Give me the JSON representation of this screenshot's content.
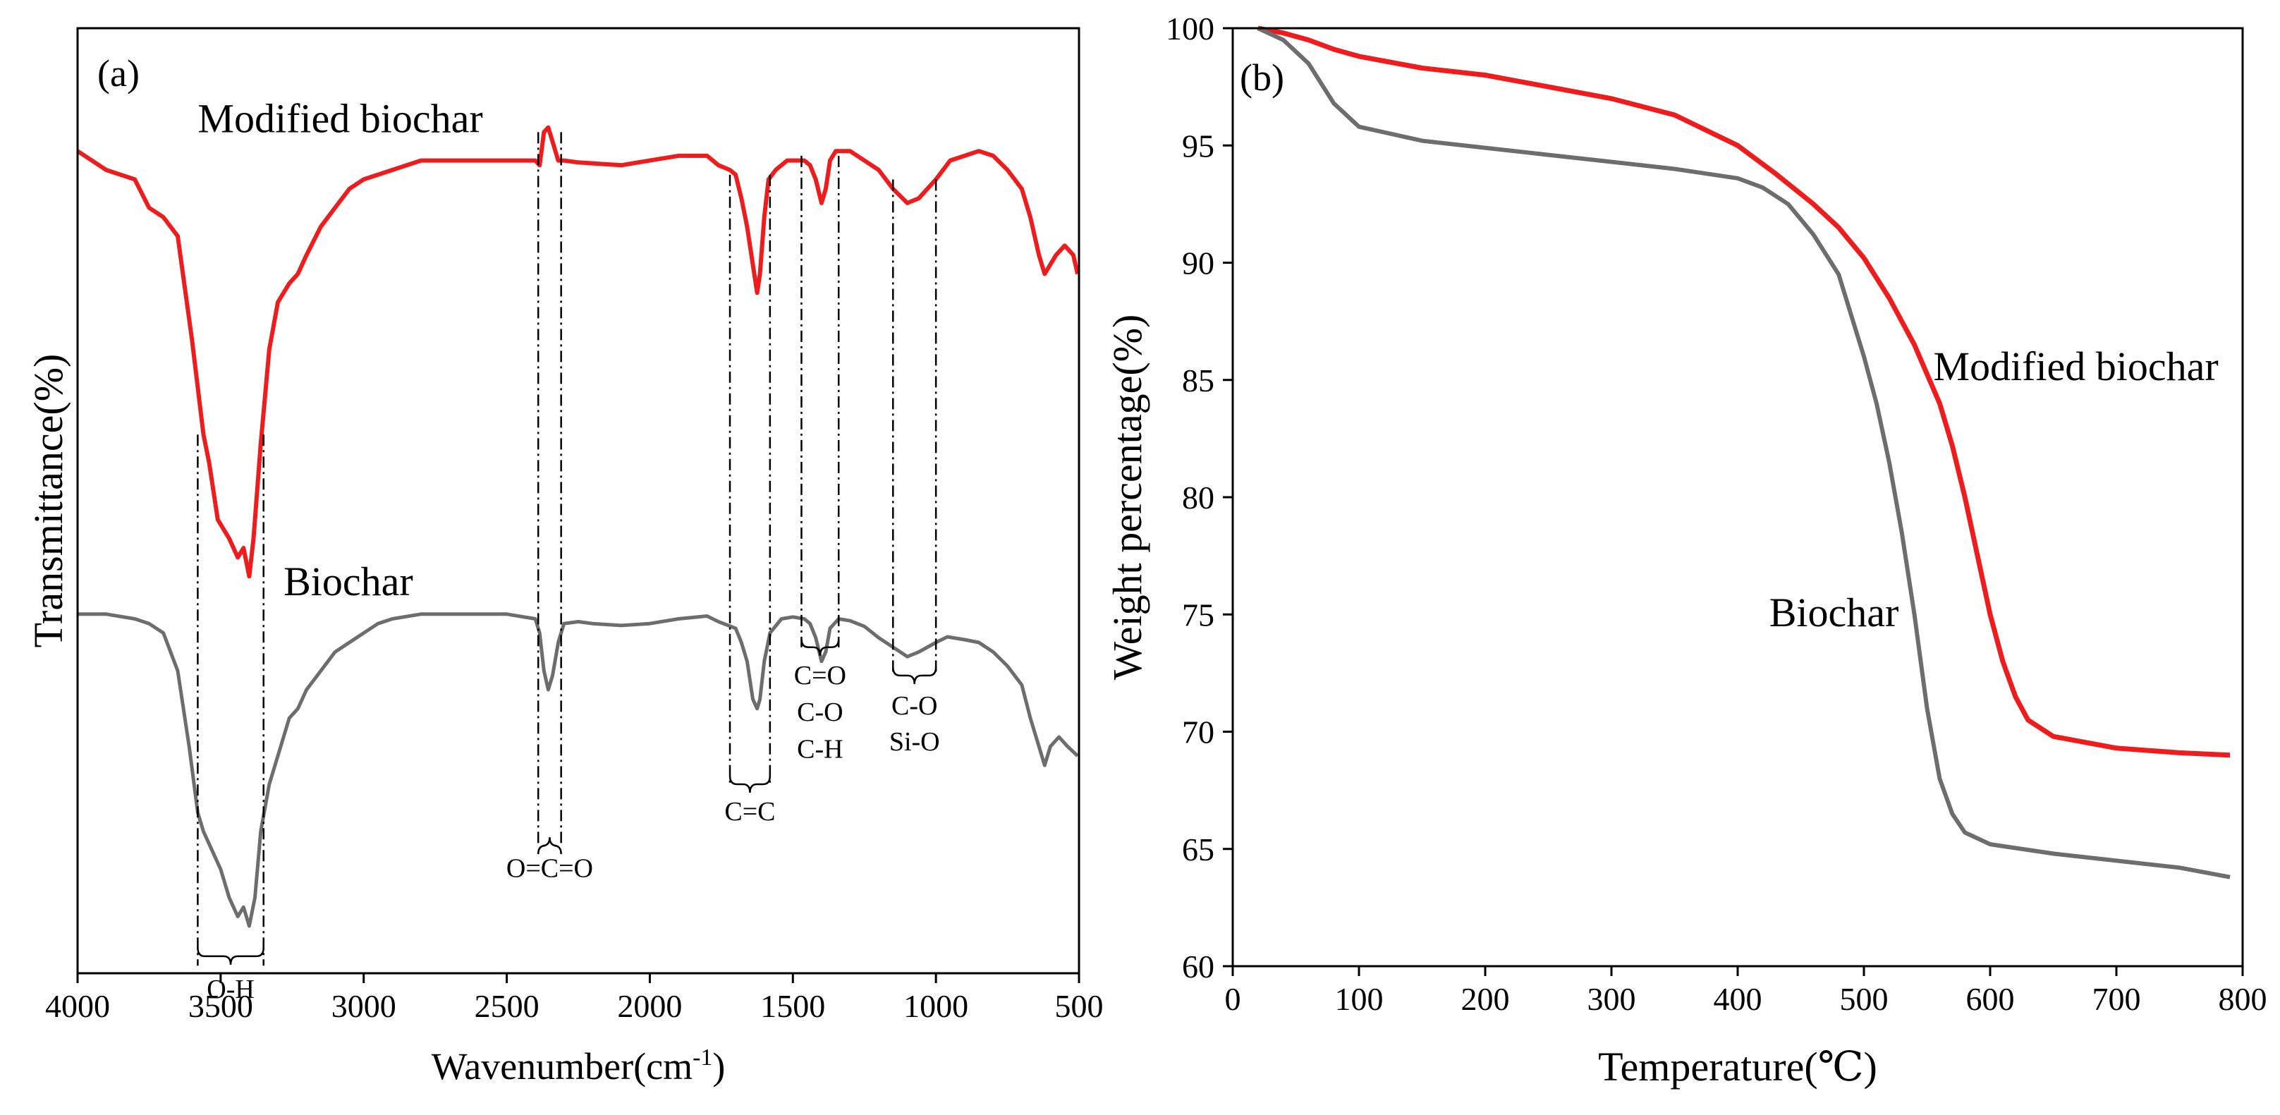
{
  "colors": {
    "modified": "#ee1c1c",
    "biochar": "#6d6d6d",
    "axis": "#000000",
    "guide": "#000000"
  },
  "chart_data": [
    {
      "type": "line",
      "panel_label": "(a)",
      "title": "",
      "xlabel": "Wavenumber(cm",
      "xlabel_sup": "-1",
      "xlabel_close": ")",
      "ylabel": "Transmittance(%)",
      "xlim": [
        4000,
        500
      ],
      "x_reversed": true,
      "y_ticks_shown": false,
      "ylim": [
        0,
        100
      ],
      "x_ticks": [
        4000,
        3500,
        3000,
        2500,
        2000,
        1500,
        1000,
        500
      ],
      "grid": false,
      "legend": "none; series are labeled directly",
      "series": [
        {
          "name": "Modified biochar",
          "color": "modified",
          "label_at": [
            3580,
            89
          ],
          "points": [
            [
              4000,
              87
            ],
            [
              3900,
              85
            ],
            [
              3800,
              84
            ],
            [
              3750,
              81
            ],
            [
              3700,
              80
            ],
            [
              3650,
              78
            ],
            [
              3600,
              67
            ],
            [
              3560,
              57
            ],
            [
              3540,
              54
            ],
            [
              3510,
              48
            ],
            [
              3470,
              46
            ],
            [
              3440,
              44
            ],
            [
              3420,
              45
            ],
            [
              3400,
              42
            ],
            [
              3385,
              46
            ],
            [
              3360,
              56
            ],
            [
              3330,
              66
            ],
            [
              3300,
              71
            ],
            [
              3260,
              73
            ],
            [
              3230,
              74
            ],
            [
              3200,
              76
            ],
            [
              3150,
              79
            ],
            [
              3100,
              81
            ],
            [
              3050,
              83
            ],
            [
              3000,
              84
            ],
            [
              2900,
              85
            ],
            [
              2800,
              86
            ],
            [
              2700,
              86
            ],
            [
              2600,
              86
            ],
            [
              2500,
              86
            ],
            [
              2400,
              86
            ],
            [
              2385,
              85.5
            ],
            [
              2370,
              89
            ],
            [
              2355,
              89.5
            ],
            [
              2340,
              88
            ],
            [
              2320,
              86
            ],
            [
              2300,
              86
            ],
            [
              2250,
              85.8
            ],
            [
              2200,
              85.7
            ],
            [
              2100,
              85.5
            ],
            [
              2000,
              86
            ],
            [
              1900,
              86.5
            ],
            [
              1800,
              86.5
            ],
            [
              1760,
              85.5
            ],
            [
              1720,
              85
            ],
            [
              1700,
              84.5
            ],
            [
              1680,
              82
            ],
            [
              1660,
              79
            ],
            [
              1640,
              75
            ],
            [
              1625,
              72
            ],
            [
              1615,
              74
            ],
            [
              1600,
              80
            ],
            [
              1585,
              84
            ],
            [
              1560,
              85
            ],
            [
              1520,
              86
            ],
            [
              1490,
              86
            ],
            [
              1460,
              86
            ],
            [
              1440,
              85.5
            ],
            [
              1420,
              84
            ],
            [
              1400,
              81.5
            ],
            [
              1385,
              83
            ],
            [
              1370,
              86
            ],
            [
              1350,
              87
            ],
            [
              1300,
              87
            ],
            [
              1250,
              86
            ],
            [
              1200,
              85
            ],
            [
              1150,
              83
            ],
            [
              1100,
              81.5
            ],
            [
              1060,
              82
            ],
            [
              1000,
              84
            ],
            [
              950,
              86
            ],
            [
              900,
              86.5
            ],
            [
              850,
              87
            ],
            [
              800,
              86.5
            ],
            [
              750,
              85
            ],
            [
              700,
              83
            ],
            [
              670,
              80
            ],
            [
              640,
              76
            ],
            [
              620,
              74
            ],
            [
              600,
              75
            ],
            [
              580,
              76
            ],
            [
              550,
              77
            ],
            [
              520,
              76
            ],
            [
              505,
              74
            ]
          ]
        },
        {
          "name": "Biochar",
          "color": "biochar",
          "label_at": [
            3280,
            40
          ],
          "points": [
            [
              4000,
              38
            ],
            [
              3900,
              38
            ],
            [
              3800,
              37.5
            ],
            [
              3750,
              37
            ],
            [
              3700,
              36
            ],
            [
              3650,
              32
            ],
            [
              3610,
              24
            ],
            [
              3580,
              17
            ],
            [
              3560,
              15
            ],
            [
              3530,
              13
            ],
            [
              3500,
              11
            ],
            [
              3470,
              8
            ],
            [
              3440,
              6
            ],
            [
              3420,
              7
            ],
            [
              3400,
              5
            ],
            [
              3380,
              8
            ],
            [
              3360,
              15
            ],
            [
              3330,
              20
            ],
            [
              3300,
              23
            ],
            [
              3260,
              27
            ],
            [
              3230,
              28
            ],
            [
              3200,
              30
            ],
            [
              3150,
              32
            ],
            [
              3100,
              34
            ],
            [
              3050,
              35
            ],
            [
              3000,
              36
            ],
            [
              2950,
              37
            ],
            [
              2900,
              37.5
            ],
            [
              2800,
              38
            ],
            [
              2700,
              38
            ],
            [
              2600,
              38
            ],
            [
              2500,
              38
            ],
            [
              2400,
              37.5
            ],
            [
              2385,
              36
            ],
            [
              2370,
              32
            ],
            [
              2355,
              30
            ],
            [
              2340,
              31.5
            ],
            [
              2320,
              35
            ],
            [
              2300,
              37
            ],
            [
              2250,
              37.2
            ],
            [
              2200,
              37
            ],
            [
              2100,
              36.8
            ],
            [
              2000,
              37
            ],
            [
              1900,
              37.5
            ],
            [
              1800,
              37.8
            ],
            [
              1760,
              37.2
            ],
            [
              1700,
              36.5
            ],
            [
              1680,
              35
            ],
            [
              1660,
              33
            ],
            [
              1640,
              29
            ],
            [
              1625,
              28
            ],
            [
              1615,
              29
            ],
            [
              1600,
              33
            ],
            [
              1580,
              36
            ],
            [
              1540,
              37.5
            ],
            [
              1500,
              37.7
            ],
            [
              1460,
              37.5
            ],
            [
              1440,
              37
            ],
            [
              1420,
              35.5
            ],
            [
              1400,
              33
            ],
            [
              1385,
              34
            ],
            [
              1370,
              36.5
            ],
            [
              1340,
              37.5
            ],
            [
              1300,
              37.3
            ],
            [
              1250,
              36.7
            ],
            [
              1200,
              35.5
            ],
            [
              1150,
              34.5
            ],
            [
              1100,
              33.5
            ],
            [
              1060,
              34
            ],
            [
              1000,
              35
            ],
            [
              960,
              35.6
            ],
            [
              900,
              35.3
            ],
            [
              850,
              35
            ],
            [
              800,
              34
            ],
            [
              750,
              32.5
            ],
            [
              700,
              30.5
            ],
            [
              670,
              27
            ],
            [
              640,
              24
            ],
            [
              620,
              22
            ],
            [
              600,
              24
            ],
            [
              570,
              25
            ],
            [
              540,
              24
            ],
            [
              505,
              23
            ]
          ]
        }
      ],
      "band_annotations": [
        {
          "label": "O-H",
          "from": 3580,
          "to": 3350
        },
        {
          "label": "O=C=O",
          "from": 2390,
          "to": 2310
        },
        {
          "label": "C=C",
          "from": 1720,
          "to": 1580
        },
        {
          "label": "C=O",
          "from": 1470,
          "to": 1340
        },
        {
          "label": "C-O",
          "from": 1470,
          "to": 1340
        },
        {
          "label": "C-H",
          "from": 1470,
          "to": 1340
        },
        {
          "label": "C-O",
          "from": 1150,
          "to": 1000
        },
        {
          "label": "Si-O",
          "from": 1150,
          "to": 1000
        }
      ]
    },
    {
      "type": "line",
      "panel_label": "(b)",
      "title": "",
      "xlabel": "Temperature(℃)",
      "ylabel": "Weight percentage(%)",
      "xlim": [
        0,
        800
      ],
      "ylim": [
        60,
        100
      ],
      "x_ticks": [
        0,
        100,
        200,
        300,
        400,
        500,
        600,
        700,
        800
      ],
      "y_ticks": [
        60,
        65,
        70,
        75,
        80,
        85,
        90,
        95,
        100
      ],
      "grid": false,
      "legend": "none; series are labeled directly",
      "series": [
        {
          "name": "Modified biochar",
          "color": "modified",
          "label_at": [
            555,
            85
          ],
          "points": [
            [
              20,
              100
            ],
            [
              40,
              99.8
            ],
            [
              60,
              99.5
            ],
            [
              80,
              99.1
            ],
            [
              100,
              98.8
            ],
            [
              150,
              98.3
            ],
            [
              200,
              98
            ],
            [
              250,
              97.5
            ],
            [
              300,
              97
            ],
            [
              350,
              96.3
            ],
            [
              400,
              95
            ],
            [
              430,
              93.8
            ],
            [
              460,
              92.5
            ],
            [
              480,
              91.5
            ],
            [
              500,
              90.2
            ],
            [
              520,
              88.5
            ],
            [
              540,
              86.5
            ],
            [
              560,
              84
            ],
            [
              570,
              82.2
            ],
            [
              580,
              80
            ],
            [
              590,
              77.5
            ],
            [
              600,
              75
            ],
            [
              610,
              73
            ],
            [
              620,
              71.5
            ],
            [
              630,
              70.5
            ],
            [
              650,
              69.8
            ],
            [
              700,
              69.3
            ],
            [
              750,
              69.1
            ],
            [
              790,
              69
            ]
          ]
        },
        {
          "name": "Biochar",
          "color": "biochar",
          "label_at": [
            425,
            74.5
          ],
          "points": [
            [
              20,
              100
            ],
            [
              40,
              99.5
            ],
            [
              60,
              98.5
            ],
            [
              80,
              96.8
            ],
            [
              100,
              95.8
            ],
            [
              150,
              95.2
            ],
            [
              200,
              94.9
            ],
            [
              250,
              94.6
            ],
            [
              300,
              94.3
            ],
            [
              350,
              94
            ],
            [
              400,
              93.6
            ],
            [
              420,
              93.2
            ],
            [
              440,
              92.5
            ],
            [
              460,
              91.2
            ],
            [
              480,
              89.5
            ],
            [
              500,
              86
            ],
            [
              510,
              84
            ],
            [
              520,
              81.5
            ],
            [
              530,
              78.5
            ],
            [
              540,
              75
            ],
            [
              550,
              71
            ],
            [
              560,
              68
            ],
            [
              570,
              66.5
            ],
            [
              580,
              65.7
            ],
            [
              600,
              65.2
            ],
            [
              650,
              64.8
            ],
            [
              700,
              64.5
            ],
            [
              750,
              64.2
            ],
            [
              790,
              63.8
            ]
          ]
        }
      ]
    }
  ]
}
